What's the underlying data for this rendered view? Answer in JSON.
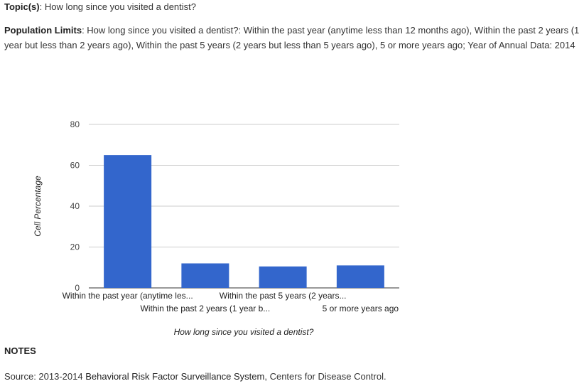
{
  "topic": {
    "label": "Topic(s)",
    "value": "How long since you visited a dentist?"
  },
  "population_limits": {
    "label": "Population Limits",
    "text": "How long since you visited a dentist?: Within the past year (anytime less than 12 months ago), Within the past 2 years (1 year but less than 2 years ago), Within the past 5 years (2 years but less than 5 years ago), 5 or more years ago; Year of Annual Data: 2014"
  },
  "chart_data": {
    "type": "bar",
    "categories": [
      "Within the past year (anytime les...",
      "Within the past 2 years (1 year b...",
      "Within the past 5 years (2 years...",
      "5 or more years ago"
    ],
    "values": [
      65.0,
      12.0,
      10.5,
      11.0
    ],
    "xlabel": "How long since you visited a dentist?",
    "ylabel": "Cell Percentage",
    "ylim": [
      0,
      80
    ],
    "yticks": [
      "0",
      "20",
      "40",
      "60",
      "80"
    ],
    "bar_color": "#3366cc",
    "grid": true,
    "legend": "none"
  },
  "notes": {
    "title": "NOTES",
    "source_prefix": "Source: 2013-2014 ",
    "source_org": "Behavioral Risk Factor Surveillance System",
    "source_suffix": ", Centers for Disease Control."
  }
}
